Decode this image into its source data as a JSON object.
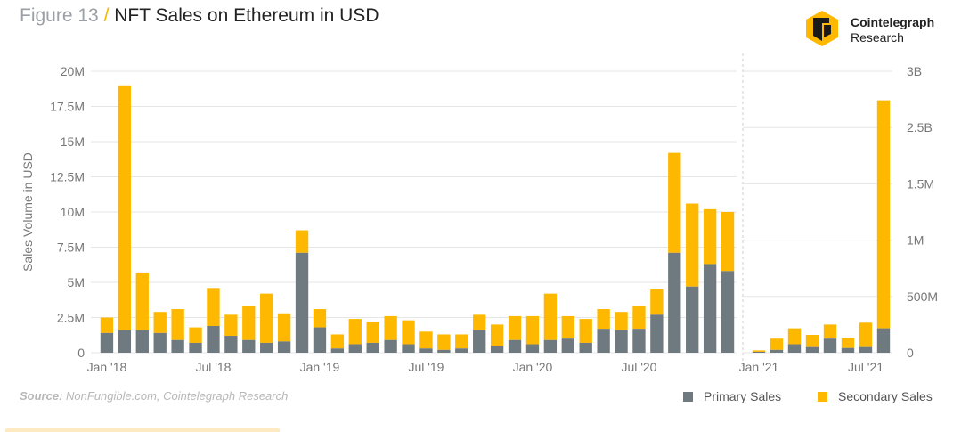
{
  "header": {
    "figure_label": "Figure 13",
    "separator": "/",
    "title": "NFT Sales on Ethereum in USD"
  },
  "brand": {
    "name": "Cointelegraph",
    "sub": "Research"
  },
  "source": {
    "label": "Source:",
    "text": "NonFungible.com, Cointelegraph Research"
  },
  "colors": {
    "primary": "#6e7a80",
    "secondary": "#ffb800",
    "grid": "#e6e6e6",
    "axis_text": "#777777"
  },
  "chart_data": [
    {
      "type": "bar",
      "stacked": true,
      "ylabel": "Sales Volume in USD",
      "ylim": [
        0,
        20000000
      ],
      "yticks": [
        "0",
        "2.5M",
        "5M",
        "7.5M",
        "10M",
        "12.5M",
        "15M",
        "17.5M",
        "20M"
      ],
      "x_tick_labels": [
        {
          "index": 0,
          "label": "Jan '18"
        },
        {
          "index": 6,
          "label": "Jul '18"
        },
        {
          "index": 12,
          "label": "Jan '19"
        },
        {
          "index": 18,
          "label": "Jul '19"
        },
        {
          "index": 24,
          "label": "Jan '20"
        },
        {
          "index": 30,
          "label": "Jul '20"
        }
      ],
      "categories": [
        "Jan 18",
        "Feb 18",
        "Mar 18",
        "Apr 18",
        "May 18",
        "Jun 18",
        "Jul 18",
        "Aug 18",
        "Sep 18",
        "Oct 18",
        "Nov 18",
        "Dec 18",
        "Jan 19",
        "Feb 19",
        "Mar 19",
        "Apr 19",
        "May 19",
        "Jun 19",
        "Jul 19",
        "Aug 19",
        "Sep 19",
        "Oct 19",
        "Nov 19",
        "Dec 19",
        "Jan 20",
        "Feb 20",
        "Mar 20",
        "Apr 20",
        "May 20",
        "Jun 20",
        "Jul 20",
        "Aug 20",
        "Sep 20",
        "Oct 20",
        "Nov 20",
        "Dec 20"
      ],
      "series": [
        {
          "name": "Primary Sales",
          "values": [
            1400000,
            1600000,
            1600000,
            1400000,
            900000,
            700000,
            1900000,
            1200000,
            900000,
            700000,
            800000,
            7100000,
            1800000,
            300000,
            600000,
            700000,
            900000,
            600000,
            300000,
            200000,
            300000,
            1600000,
            500000,
            900000,
            600000,
            900000,
            1000000,
            700000,
            1700000,
            1600000,
            1700000,
            2700000,
            7100000,
            4700000,
            6300000,
            5800000
          ]
        },
        {
          "name": "Secondary Sales",
          "values": [
            1100000,
            17400000,
            4100000,
            1500000,
            2200000,
            1100000,
            2700000,
            1500000,
            2400000,
            3500000,
            2000000,
            1600000,
            1300000,
            1000000,
            1800000,
            1500000,
            1700000,
            1700000,
            1200000,
            1100000,
            1000000,
            1100000,
            1500000,
            1700000,
            2000000,
            3300000,
            1600000,
            1700000,
            1400000,
            1300000,
            1600000,
            1800000,
            7100000,
            5900000,
            3900000,
            4200000
          ]
        }
      ]
    },
    {
      "type": "bar",
      "stacked": true,
      "ylim": [
        0,
        3000000000
      ],
      "yticks": [
        "0",
        "500M",
        "1M",
        "1.5M",
        "2.5B",
        "3B"
      ],
      "x_tick_labels": [
        {
          "index": 0,
          "label": "Jan '21"
        },
        {
          "index": 6,
          "label": "Jul '21"
        }
      ],
      "categories": [
        "Jan 21",
        "Feb 21",
        "Mar 21",
        "Apr 21",
        "May 21",
        "Jun 21",
        "Jul 21",
        "Aug 21"
      ],
      "series": [
        {
          "name": "Primary Sales",
          "values": [
            10000000,
            30000000,
            90000000,
            60000000,
            150000000,
            50000000,
            60000000,
            260000000
          ]
        },
        {
          "name": "Secondary Sales",
          "values": [
            15000000,
            120000000,
            170000000,
            130000000,
            150000000,
            110000000,
            260000000,
            2430000000
          ]
        }
      ]
    }
  ],
  "legend": {
    "primary": "Primary Sales",
    "secondary": "Secondary Sales"
  }
}
